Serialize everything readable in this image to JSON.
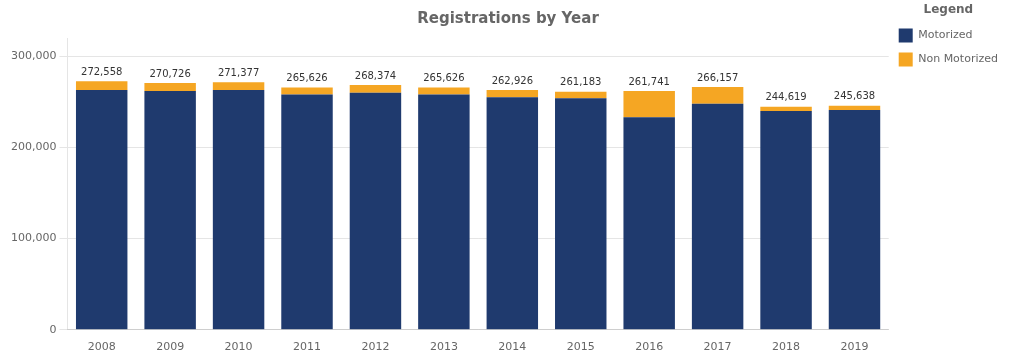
{
  "chart_data": {
    "type": "bar",
    "title": "Registrations by Year",
    "categories": [
      "2008",
      "2009",
      "2010",
      "2011",
      "2012",
      "2013",
      "2014",
      "2015",
      "2016",
      "2017",
      "2018",
      "2019"
    ],
    "series": [
      {
        "name": "Motorized",
        "color": "#1F3A6E",
        "values": [
          263000,
          262000,
          263000,
          258000,
          260000,
          258000,
          255000,
          254000,
          233000,
          248000,
          240000,
          241000
        ]
      },
      {
        "name": "Non Motorized",
        "color": "#F5A623",
        "values": [
          9558,
          8726,
          8377,
          7626,
          8374,
          7626,
          7926,
          7183,
          28741,
          18157,
          4619,
          4638
        ]
      }
    ],
    "stacked": true,
    "totals": [
      272558,
      270726,
      271377,
      265626,
      268374,
      265626,
      262926,
      261183,
      261741,
      266157,
      244619,
      245638
    ],
    "total_labels": [
      "272,558",
      "270,726",
      "271,377",
      "265,626",
      "268,374",
      "265,626",
      "262,926",
      "261,183",
      "261,741",
      "266,157",
      "244,619",
      "245,638"
    ],
    "ylim": [
      0,
      320000
    ],
    "yticks": [
      0,
      {
        "value": 100000,
        "label": "100,000"
      },
      {
        "value": 200000,
        "label": "200,000"
      },
      {
        "value": 300000,
        "label": "300,000"
      }
    ],
    "grid": true,
    "legend": "right",
    "legend_title": "Legend"
  }
}
